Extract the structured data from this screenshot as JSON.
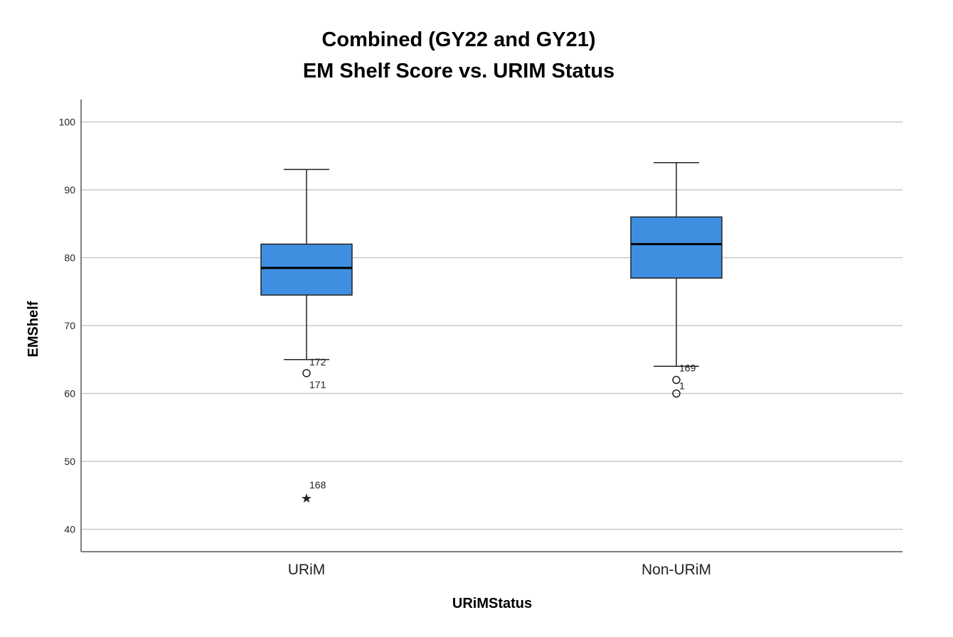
{
  "chart_data": {
    "type": "box",
    "title": "Combined (GY22 and GY21)",
    "subtitle": "EM Shelf Score vs. URIM Status",
    "xlabel": "URiMStatus",
    "ylabel": "EMShelf",
    "ylim": [
      37,
      103.5
    ],
    "yticks": [
      40,
      50,
      60,
      70,
      80,
      90,
      100
    ],
    "grid": true,
    "box_color": "#3f8fe0",
    "categories": [
      "URiM",
      "Non-URiM"
    ],
    "boxes": [
      {
        "category": "URiM",
        "whisker_low": 65,
        "q1": 74.5,
        "median": 78.5,
        "q3": 82,
        "whisker_high": 93,
        "outliers": [
          {
            "value": 63,
            "symbol": "circle",
            "labels": [
              "172",
              "171"
            ]
          },
          {
            "value": 45,
            "symbol": "star",
            "labels": [
              "168"
            ]
          }
        ]
      },
      {
        "category": "Non-URiM",
        "whisker_low": 64,
        "q1": 77,
        "median": 82,
        "q3": 86,
        "whisker_high": 94,
        "outliers": [
          {
            "value": 62,
            "symbol": "circle",
            "labels": [
              "169"
            ]
          },
          {
            "value": 60,
            "symbol": "circle",
            "labels": [
              "1"
            ]
          }
        ]
      }
    ]
  }
}
